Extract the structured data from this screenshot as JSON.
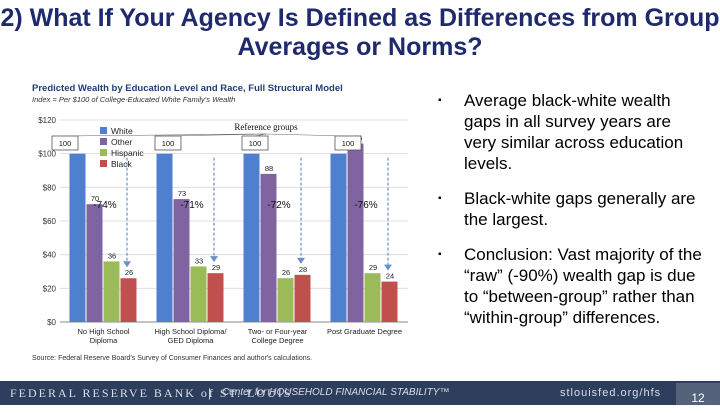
{
  "slide": {
    "title": "2) What If Your Agency Is Defined as Differences from Group Averages or Norms?",
    "bullets": [
      "Average black-white wealth gaps in all survey years are very similar across education levels.",
      "Black-white gaps generally are the largest.",
      "Conclusion: Vast majority of the “raw” (-90%) wealth gap is due to “between-group” rather than “within-group” differences."
    ],
    "bullet_symbol": "▪"
  },
  "footer": {
    "left": "FEDERAL RESERVE BANK of ST. LOUIS",
    "separator": "|",
    "center": "Center for HOUSEHOLD FINANCIAL STABILITY™",
    "url": "stlouisfed.org/hfs",
    "page_number": "12"
  },
  "chart_data": {
    "type": "bar",
    "title": "Predicted Wealth by Education Level and Race, Full Structural Model",
    "subtitle": "Index = Per $100 of College-Educated White Family's Wealth",
    "categories": [
      "No High School Diploma",
      "High School Diploma/GED Diploma",
      "Two- or Four-year College Degree",
      "Post Graduate Degree"
    ],
    "series": [
      {
        "name": "White",
        "color": "#4f7fcf",
        "values": [
          100,
          100,
          100,
          100
        ]
      },
      {
        "name": "Other",
        "color": "#8064a2",
        "values": [
          70,
          73,
          88,
          106
        ]
      },
      {
        "name": "Hispanic",
        "color": "#9bbb59",
        "values": [
          36,
          33,
          26,
          29
        ]
      },
      {
        "name": "Black",
        "color": "#c0504d",
        "values": [
          26,
          29,
          28,
          24
        ]
      }
    ],
    "ylim": [
      0,
      120
    ],
    "yticks": [
      "$0",
      "$20",
      "$40",
      "$60",
      "$80",
      "$100",
      "$120"
    ],
    "grid": true,
    "legend_position": "top-left",
    "annotations": {
      "reference_label": "Reference groups",
      "reference_values": [
        "100",
        "100",
        "100",
        "100"
      ],
      "gap_labels": [
        "-74%",
        "-71%",
        "-72%",
        "-76%"
      ]
    },
    "source": "Source: Federal Reserve Board's Survey of Consumer Finances and author's calculations."
  }
}
